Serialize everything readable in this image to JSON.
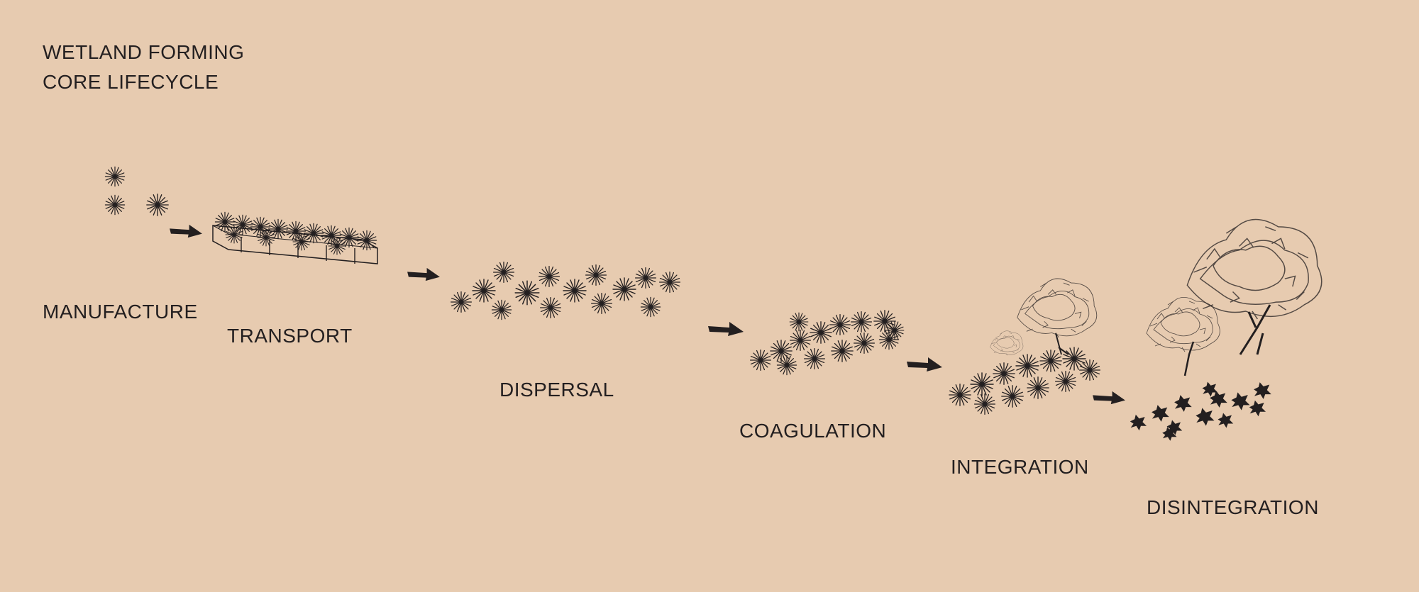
{
  "title": {
    "line1": "WETLAND FORMING",
    "line2": "CORE LIFECYCLE"
  },
  "stages": [
    {
      "id": "manufacture",
      "label": "MANUFACTURE"
    },
    {
      "id": "transport",
      "label": "TRANSPORT"
    },
    {
      "id": "dispersal",
      "label": "DISPERSAL"
    },
    {
      "id": "coagulation",
      "label": "COAGULATION"
    },
    {
      "id": "integration",
      "label": "INTEGRATION"
    },
    {
      "id": "disintegration",
      "label": "DISINTEGRATION"
    }
  ],
  "colors": {
    "background": "#e7cbb0",
    "ink": "#231f20"
  }
}
